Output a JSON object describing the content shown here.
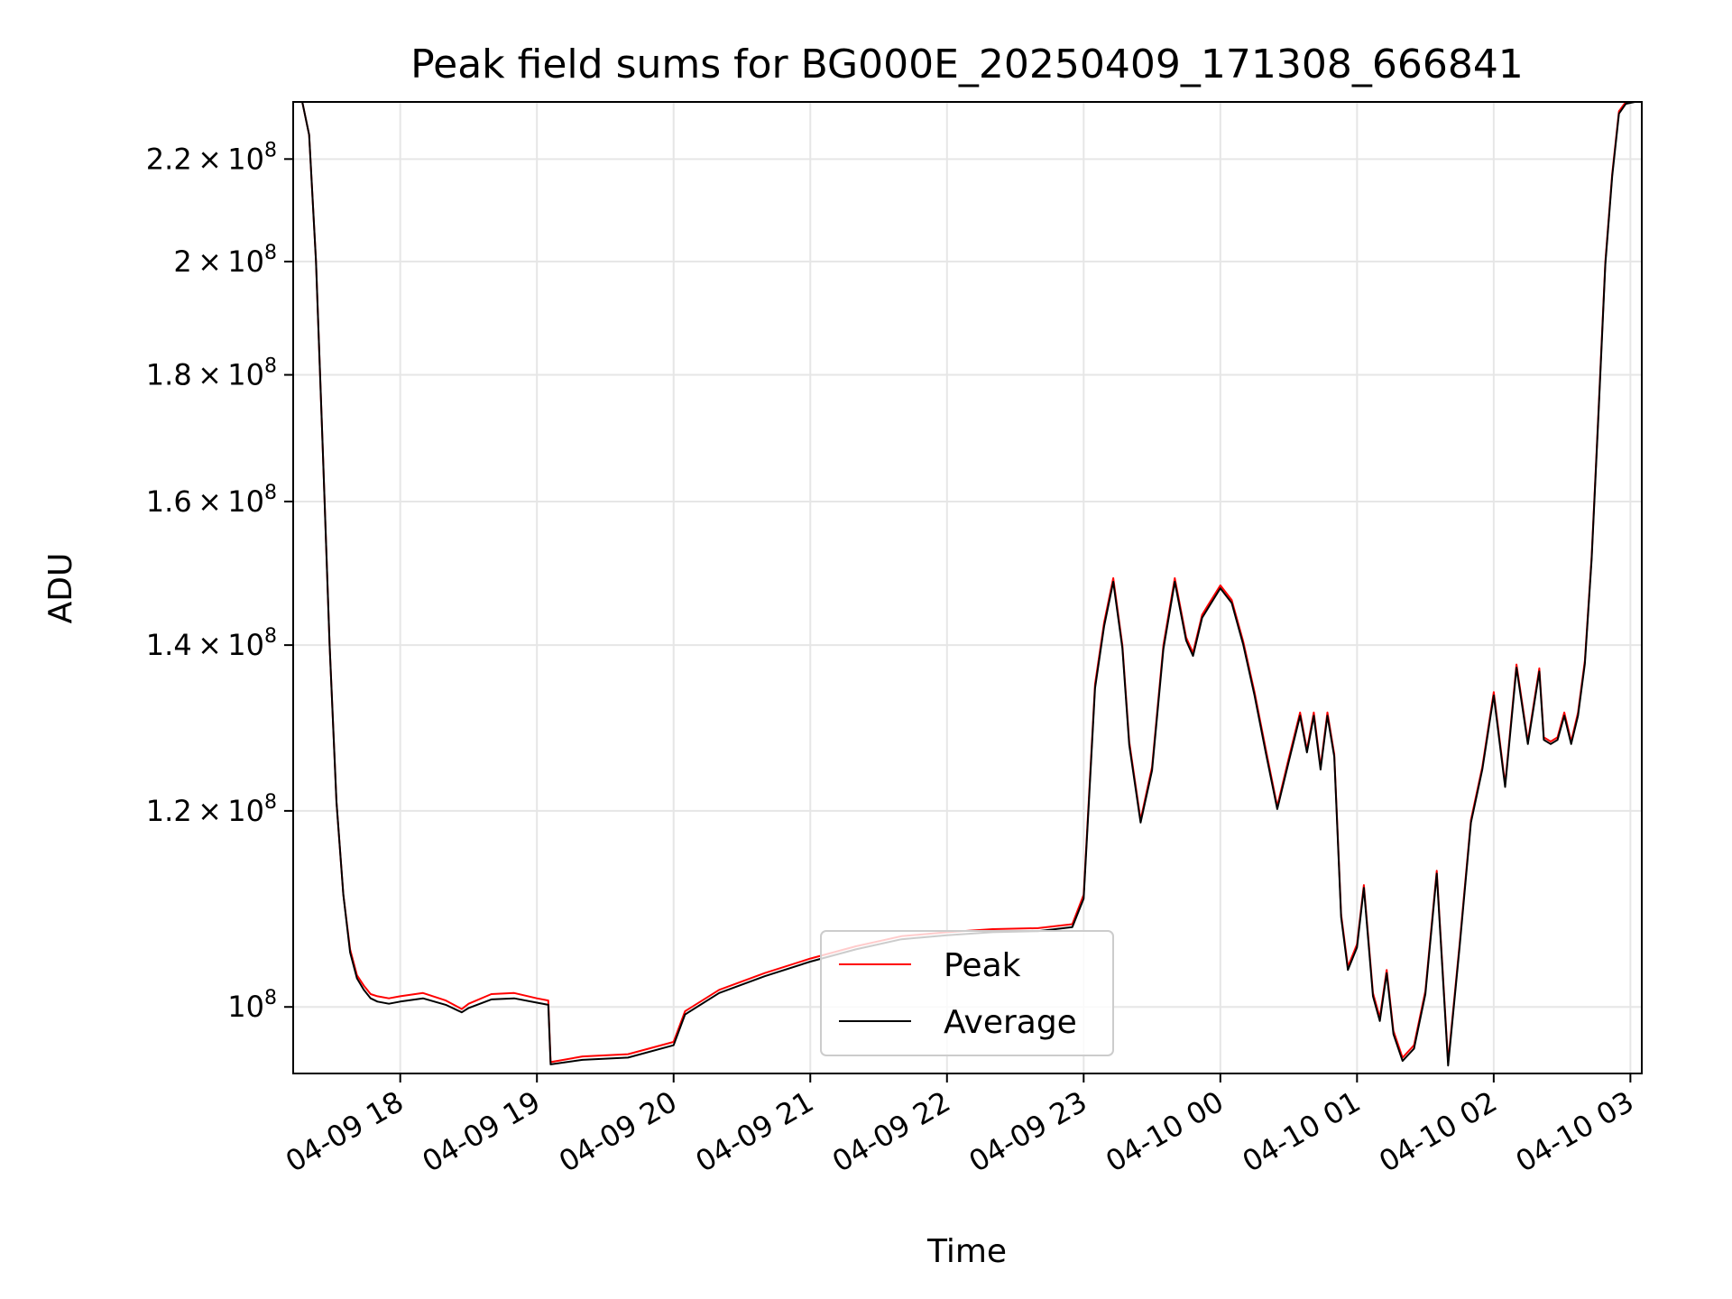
{
  "chart_data": {
    "type": "line",
    "title": "Peak field sums for BG000E_20250409_171308_666841",
    "xlabel": "Time",
    "ylabel": "ADU",
    "y_scale": "log",
    "grid": true,
    "legend_position": "lower center",
    "xlim": [
      "04-09 17:13",
      "04-10 03:05"
    ],
    "ylim": [
      94000000,
      232000000
    ],
    "x_ticks": [
      "04-09 18",
      "04-09 19",
      "04-09 20",
      "04-09 21",
      "04-09 22",
      "04-09 23",
      "04-10 00",
      "04-10 01",
      "04-10 02",
      "04-10 03"
    ],
    "x_tick_times": [
      "04-09 18:00",
      "04-09 19:00",
      "04-09 20:00",
      "04-09 21:00",
      "04-09 22:00",
      "04-09 23:00",
      "04-10 00:00",
      "04-10 01:00",
      "04-10 02:00",
      "04-10 03:00"
    ],
    "y_ticks": [
      {
        "value": 100000000,
        "mantissa": "",
        "exp": "8",
        "label": "10^8"
      },
      {
        "value": 120000000,
        "mantissa": "1.2",
        "exp": "8",
        "label": "1.2×10^8"
      },
      {
        "value": 140000000,
        "mantissa": "1.4",
        "exp": "8",
        "label": "1.4×10^8"
      },
      {
        "value": 160000000,
        "mantissa": "1.6",
        "exp": "8",
        "label": "1.6×10^8"
      },
      {
        "value": 180000000,
        "mantissa": "1.8",
        "exp": "8",
        "label": "1.8×10^8"
      },
      {
        "value": 200000000,
        "mantissa": "2",
        "exp": "8",
        "label": "2×10^8"
      },
      {
        "value": 220000000,
        "mantissa": "2.2",
        "exp": "8",
        "label": "2.2×10^8"
      }
    ],
    "series": [
      {
        "name": "Peak",
        "color": "#ff0000",
        "x": [
          "04-09 17:13",
          "04-09 17:17",
          "04-09 17:20",
          "04-09 17:23",
          "04-09 17:26",
          "04-09 17:29",
          "04-09 17:32",
          "04-09 17:35",
          "04-09 17:38",
          "04-09 17:41",
          "04-09 17:44",
          "04-09 17:47",
          "04-09 17:50",
          "04-09 17:55",
          "04-09 18:00",
          "04-09 18:10",
          "04-09 18:20",
          "04-09 18:27",
          "04-09 18:30",
          "04-09 18:40",
          "04-09 18:50",
          "04-09 19:00",
          "04-09 19:05",
          "04-09 19:06",
          "04-09 19:20",
          "04-09 19:40",
          "04-09 20:00",
          "04-09 20:05",
          "04-09 20:20",
          "04-09 20:40",
          "04-09 21:00",
          "04-09 21:20",
          "04-09 21:40",
          "04-09 22:00",
          "04-09 22:20",
          "04-09 22:40",
          "04-09 22:55",
          "04-09 23:00",
          "04-09 23:05",
          "04-09 23:09",
          "04-09 23:13",
          "04-09 23:17",
          "04-09 23:20",
          "04-09 23:25",
          "04-09 23:30",
          "04-09 23:35",
          "04-09 23:40",
          "04-09 23:45",
          "04-09 23:48",
          "04-09 23:52",
          "04-09 23:55",
          "04-10 00:00",
          "04-10 00:05",
          "04-10 00:10",
          "04-10 00:15",
          "04-10 00:20",
          "04-10 00:25",
          "04-10 00:30",
          "04-10 00:35",
          "04-10 00:38",
          "04-10 00:41",
          "04-10 00:44",
          "04-10 00:47",
          "04-10 00:50",
          "04-10 00:53",
          "04-10 00:56",
          "04-10 01:00",
          "04-10 01:03",
          "04-10 01:07",
          "04-10 01:10",
          "04-10 01:13",
          "04-10 01:16",
          "04-10 01:20",
          "04-10 01:25",
          "04-10 01:30",
          "04-10 01:35",
          "04-10 01:40",
          "04-10 01:45",
          "04-10 01:50",
          "04-10 01:55",
          "04-10 02:00",
          "04-10 02:05",
          "04-10 02:10",
          "04-10 02:15",
          "04-10 02:20",
          "04-10 02:22",
          "04-10 02:25",
          "04-10 02:28",
          "04-10 02:31",
          "04-10 02:34",
          "04-10 02:37",
          "04-10 02:40",
          "04-10 02:43",
          "04-10 02:46",
          "04-10 02:49",
          "04-10 02:52",
          "04-10 02:55",
          "04-10 02:58",
          "04-10 03:00",
          "04-10 03:05"
        ],
        "y": [
          233000000,
          232000000,
          225000000,
          200000000,
          168000000,
          140000000,
          121000000,
          111000000,
          105500000,
          103000000,
          102000000,
          101200000,
          101000000,
          100800000,
          101000000,
          101300000,
          100600000,
          99800000,
          100300000,
          101200000,
          101300000,
          100800000,
          100600000,
          95000000,
          95500000,
          95700000,
          96800000,
          99600000,
          101600000,
          103200000,
          104600000,
          105800000,
          106800000,
          107200000,
          107500000,
          107600000,
          108000000,
          111000000,
          135000000,
          143000000,
          149000000,
          140000000,
          128000000,
          119000000,
          125000000,
          140000000,
          149000000,
          141000000,
          139000000,
          144000000,
          145500000,
          148000000,
          146000000,
          140500000,
          134000000,
          127000000,
          120500000,
          126000000,
          131500000,
          127000000,
          131500000,
          125000000,
          131500000,
          126500000,
          109000000,
          103800000,
          106000000,
          112000000,
          101300000,
          99000000,
          103500000,
          97800000,
          95400000,
          96500000,
          101500000,
          113500000,
          95000000,
          106000000,
          119000000,
          125000000,
          134000000,
          123000000,
          137500000,
          128000000,
          137000000,
          128500000,
          128000000,
          128500000,
          131500000,
          128000000,
          131500000,
          138000000,
          152000000,
          174000000,
          200000000,
          217000000,
          230000000,
          232000000,
          232000000,
          232500000
        ]
      },
      {
        "name": "Average",
        "color": "#000000",
        "x": [
          "04-09 17:13",
          "04-09 17:17",
          "04-09 17:20",
          "04-09 17:23",
          "04-09 17:26",
          "04-09 17:29",
          "04-09 17:32",
          "04-09 17:35",
          "04-09 17:38",
          "04-09 17:41",
          "04-09 17:44",
          "04-09 17:47",
          "04-09 17:50",
          "04-09 17:55",
          "04-09 18:00",
          "04-09 18:10",
          "04-09 18:20",
          "04-09 18:27",
          "04-09 18:30",
          "04-09 18:40",
          "04-09 18:50",
          "04-09 19:00",
          "04-09 19:05",
          "04-09 19:06",
          "04-09 19:20",
          "04-09 19:40",
          "04-09 20:00",
          "04-09 20:05",
          "04-09 20:20",
          "04-09 20:40",
          "04-09 21:00",
          "04-09 21:20",
          "04-09 21:40",
          "04-09 22:00",
          "04-09 22:20",
          "04-09 22:40",
          "04-09 22:55",
          "04-09 23:00",
          "04-09 23:05",
          "04-09 23:09",
          "04-09 23:13",
          "04-09 23:17",
          "04-09 23:20",
          "04-09 23:25",
          "04-09 23:30",
          "04-09 23:35",
          "04-09 23:40",
          "04-09 23:45",
          "04-09 23:48",
          "04-09 23:52",
          "04-09 23:55",
          "04-10 00:00",
          "04-10 00:05",
          "04-10 00:10",
          "04-10 00:15",
          "04-10 00:20",
          "04-10 00:25",
          "04-10 00:30",
          "04-10 00:35",
          "04-10 00:38",
          "04-10 00:41",
          "04-10 00:44",
          "04-10 00:47",
          "04-10 00:50",
          "04-10 00:53",
          "04-10 00:56",
          "04-10 01:00",
          "04-10 01:03",
          "04-10 01:07",
          "04-10 01:10",
          "04-10 01:13",
          "04-10 01:16",
          "04-10 01:20",
          "04-10 01:25",
          "04-10 01:30",
          "04-10 01:35",
          "04-10 01:40",
          "04-10 01:45",
          "04-10 01:50",
          "04-10 01:55",
          "04-10 02:00",
          "04-10 02:05",
          "04-10 02:10",
          "04-10 02:15",
          "04-10 02:20",
          "04-10 02:22",
          "04-10 02:25",
          "04-10 02:28",
          "04-10 02:31",
          "04-10 02:34",
          "04-10 02:37",
          "04-10 02:40",
          "04-10 02:43",
          "04-10 02:46",
          "04-10 02:49",
          "04-10 02:52",
          "04-10 02:55",
          "04-10 02:58",
          "04-10 03:00",
          "04-10 03:05"
        ],
        "y": [
          233000000,
          232000000,
          225000000,
          200000000,
          168000000,
          140000000,
          121000000,
          111000000,
          105200000,
          102700000,
          101600000,
          100800000,
          100500000,
          100300000,
          100500000,
          100800000,
          100200000,
          99500000,
          99900000,
          100700000,
          100800000,
          100400000,
          100200000,
          94800000,
          95200000,
          95400000,
          96500000,
          99300000,
          101300000,
          102900000,
          104300000,
          105500000,
          106500000,
          106900000,
          107200000,
          107300000,
          107700000,
          110600000,
          134500000,
          142500000,
          148500000,
          139600000,
          127600000,
          118700000,
          124600000,
          139500000,
          148500000,
          140600000,
          138600000,
          143600000,
          145100000,
          147600000,
          145600000,
          140100000,
          133600000,
          126600000,
          120200000,
          125600000,
          131100000,
          126700000,
          131100000,
          124700000,
          131100000,
          126200000,
          108700000,
          103500000,
          105700000,
          111700000,
          101000000,
          98700000,
          103200000,
          97500000,
          95100000,
          96200000,
          101200000,
          113200000,
          94700000,
          105700000,
          118700000,
          124700000,
          133600000,
          122700000,
          137100000,
          127700000,
          136600000,
          128200000,
          127700000,
          128200000,
          131100000,
          127700000,
          131100000,
          137600000,
          151600000,
          173500000,
          199500000,
          216500000,
          229500000,
          231600000,
          231800000,
          232300000
        ]
      }
    ]
  }
}
